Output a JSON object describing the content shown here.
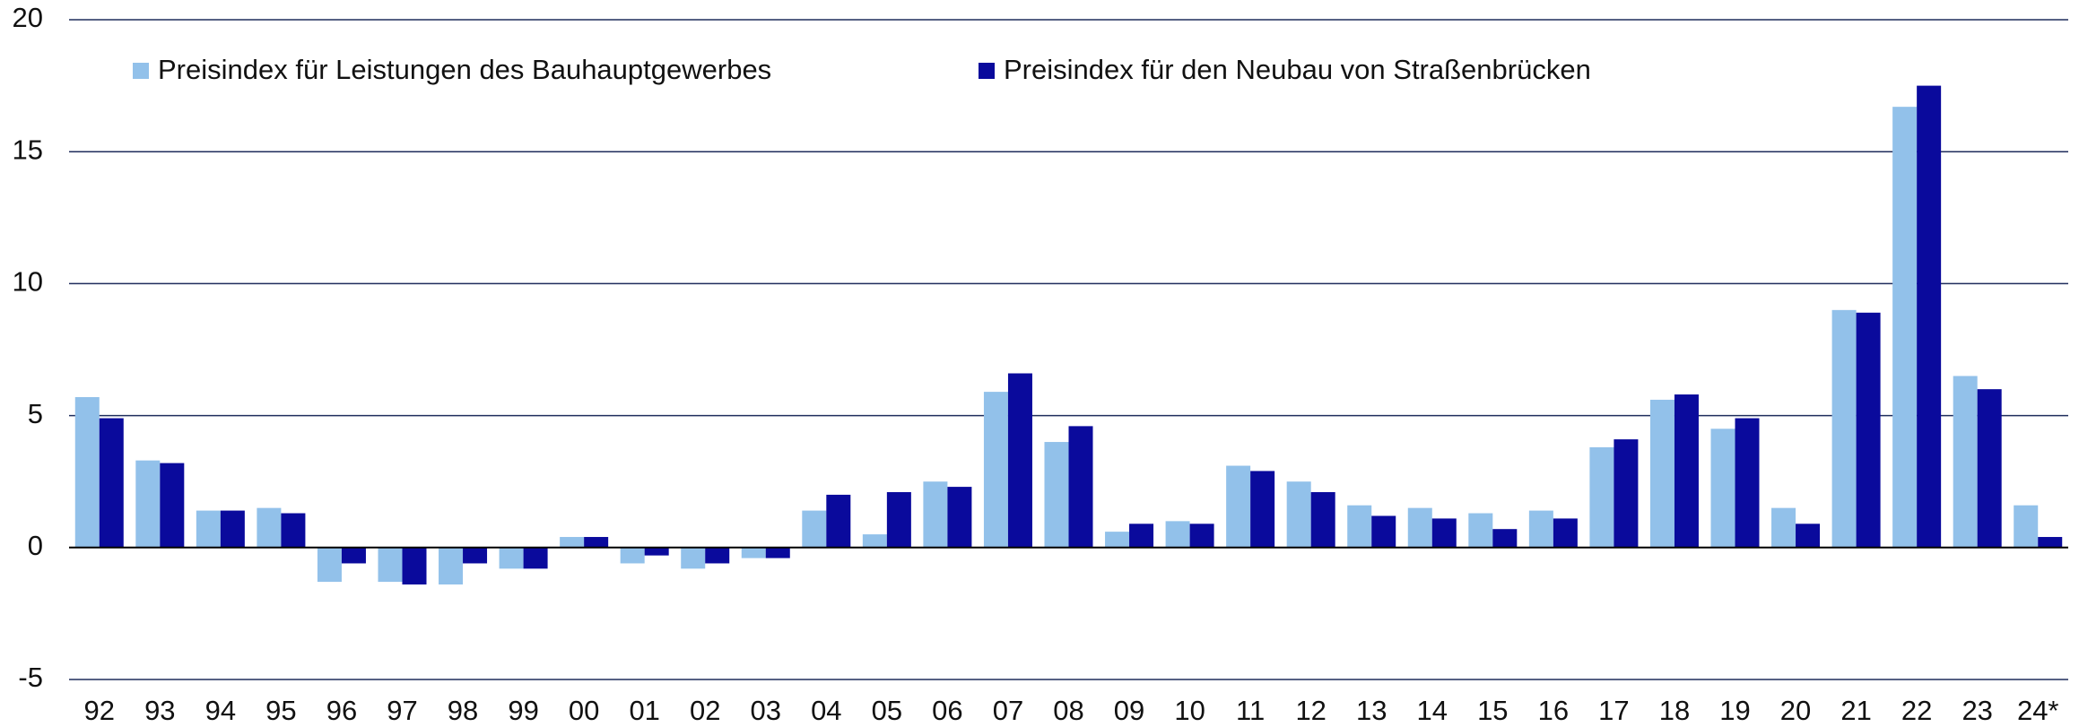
{
  "chart_data": {
    "type": "bar",
    "categories": [
      "92",
      "93",
      "94",
      "95",
      "96",
      "97",
      "98",
      "99",
      "00",
      "01",
      "02",
      "03",
      "04",
      "05",
      "06",
      "07",
      "08",
      "09",
      "10",
      "11",
      "12",
      "13",
      "14",
      "15",
      "16",
      "17",
      "18",
      "19",
      "20",
      "21",
      "22",
      "23",
      "24*"
    ],
    "series": [
      {
        "name": "Preisindex für Leistungen des Bauhauptgewerbes",
        "color": "#92c1ea",
        "values": [
          5.7,
          3.3,
          1.4,
          1.5,
          -1.3,
          -1.3,
          -1.4,
          -0.8,
          0.4,
          -0.6,
          -0.8,
          -0.4,
          1.4,
          0.5,
          2.5,
          5.9,
          4.0,
          0.6,
          1.0,
          3.1,
          2.5,
          1.6,
          1.5,
          1.3,
          1.4,
          3.8,
          5.6,
          4.5,
          1.5,
          9.0,
          16.7,
          6.5,
          1.6
        ]
      },
      {
        "name": "Preisindex für den Neubau von Straßenbrücken",
        "color": "#0a0a9c",
        "values": [
          4.9,
          3.2,
          1.4,
          1.3,
          -0.6,
          -1.4,
          -0.6,
          -0.8,
          0.4,
          -0.3,
          -0.6,
          -0.4,
          2.0,
          2.1,
          2.3,
          6.6,
          4.6,
          0.9,
          0.9,
          2.9,
          2.1,
          1.2,
          1.1,
          0.7,
          1.1,
          4.1,
          5.8,
          4.9,
          0.9,
          8.9,
          17.5,
          6.0,
          0.4
        ]
      }
    ],
    "ylim": [
      -5,
      20
    ],
    "yticks": [
      -5,
      0,
      5,
      10,
      15,
      20
    ],
    "grid": true,
    "legend": "top-left"
  }
}
